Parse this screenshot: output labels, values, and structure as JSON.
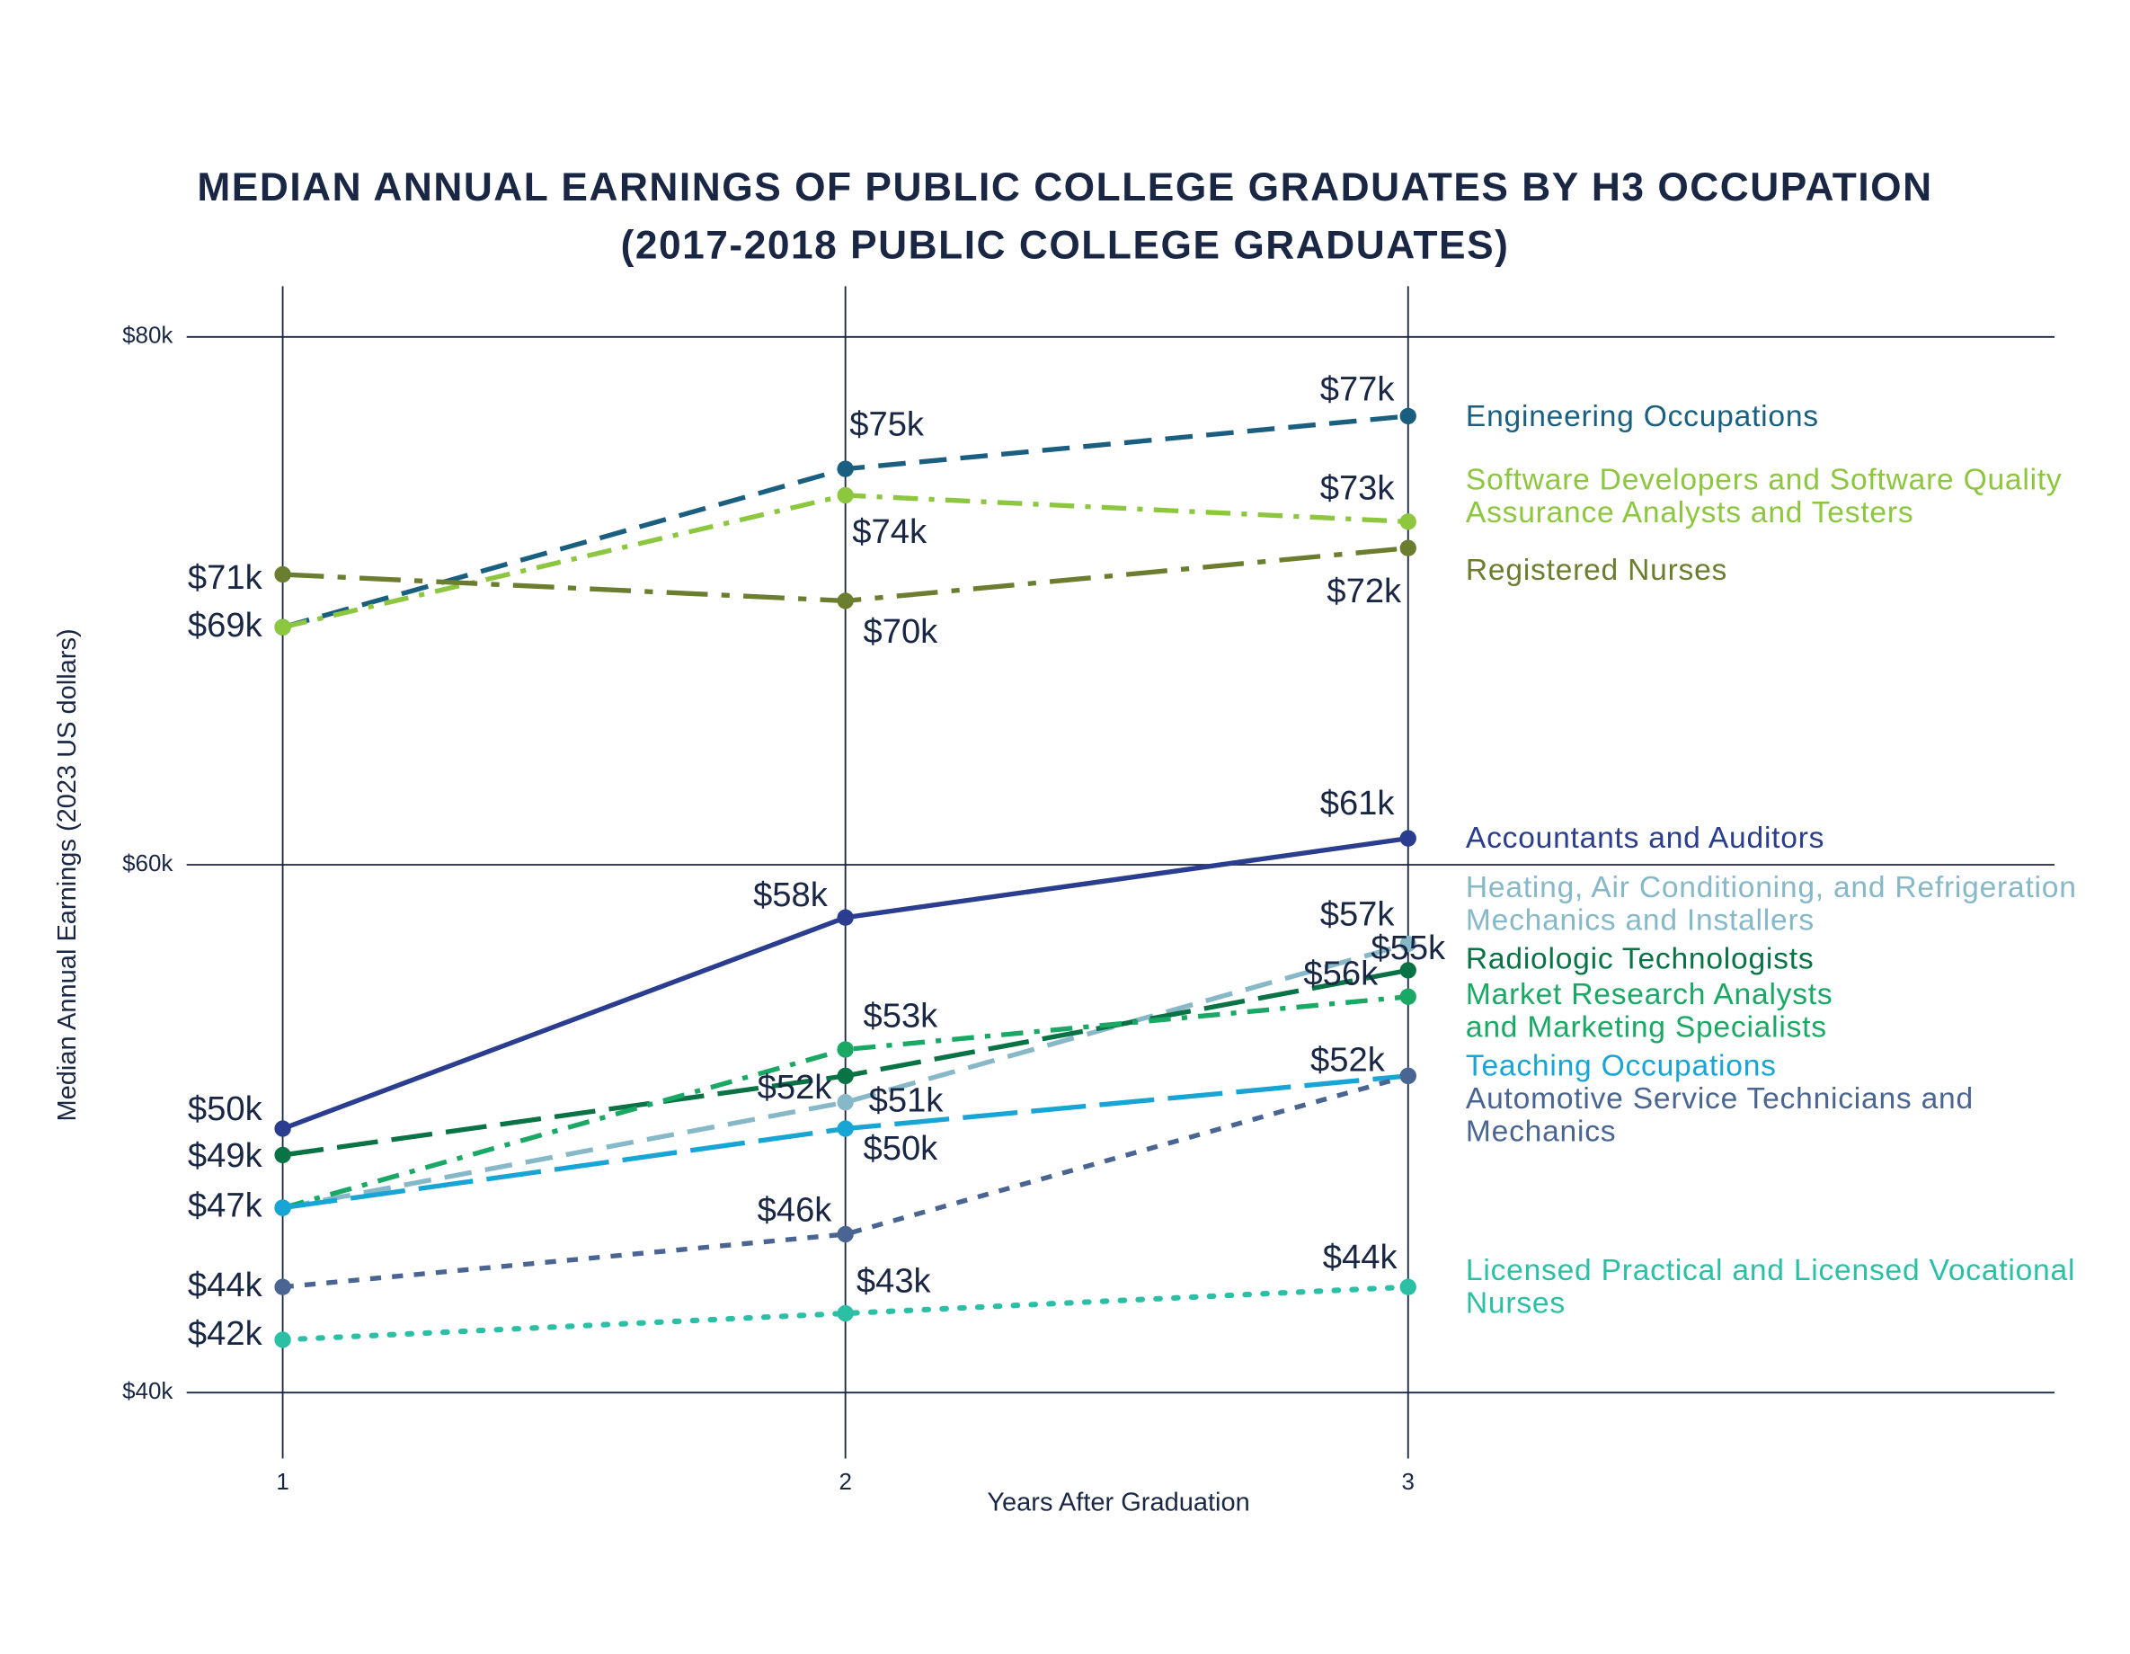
{
  "chart_data": {
    "type": "line",
    "title": "MEDIAN ANNUAL EARNINGS OF PUBLIC COLLEGE GRADUATES BY H3 OCCUPATION",
    "subtitle": "(2017-2018 PUBLIC COLLEGE GRADUATES)",
    "x_label": "Years After Graduation",
    "y_label": "Median Annual Earnings (2023 US dollars)",
    "x": [
      1,
      2,
      3
    ],
    "xlim": [
      1,
      3
    ],
    "xticks": [
      1,
      2,
      3
    ],
    "ylim": [
      40,
      80
    ],
    "yticks": [
      {
        "value": 40,
        "label": "$40k"
      },
      {
        "value": 60,
        "label": "$60k"
      },
      {
        "value": 80,
        "label": "$80k"
      }
    ],
    "grid": true,
    "series": [
      {
        "name": "Engineering Occupations",
        "color": "#1a5f80",
        "values": [
          69,
          75,
          77
        ],
        "value_labels": [
          null,
          "$75k",
          "$77k"
        ]
      },
      {
        "name": "Software Developers and Software Quality Assurance Analysts and Testers",
        "color": "#8dc63f",
        "values": [
          69,
          74,
          73
        ],
        "value_labels": [
          "$69k",
          "$74k",
          "$73k"
        ]
      },
      {
        "name": "Registered Nurses",
        "color": "#6b7d2e",
        "values": [
          71,
          70,
          72
        ],
        "value_labels": [
          "$71k",
          "$70k",
          "$72k"
        ]
      },
      {
        "name": "Accountants and Auditors",
        "color": "#2a3d8f",
        "values": [
          50,
          58,
          61
        ],
        "value_labels": [
          "$50k",
          "$58k",
          "$61k"
        ]
      },
      {
        "name": "Heating, Air Conditioning, and Refrigeration Mechanics and Installers",
        "color": "#86b8c8",
        "values": [
          47,
          51,
          57
        ],
        "value_labels": [
          null,
          "$51k",
          "$57k"
        ]
      },
      {
        "name": "Radiologic Technologists",
        "color": "#0a7345",
        "values": [
          49,
          52,
          56
        ],
        "value_labels": [
          "$49k",
          "$52k",
          "$56k"
        ]
      },
      {
        "name": "Market Research Analysts and Marketing Specialists",
        "color": "#1aa865",
        "values": [
          47,
          53,
          55
        ],
        "value_labels": [
          null,
          "$53k",
          "$55k"
        ]
      },
      {
        "name": "Teaching Occupations",
        "color": "#17a5d6",
        "values": [
          47,
          50,
          52
        ],
        "value_labels": [
          "$47k",
          "$50k",
          "$52k"
        ]
      },
      {
        "name": "Automotive Service Technicians and Mechanics",
        "color": "#4a6592",
        "values": [
          44,
          46,
          52
        ],
        "value_labels": [
          "$44k",
          "$46k",
          null
        ]
      },
      {
        "name": "Licensed Practical and Licensed Vocational Nurses",
        "color": "#2bbfa5",
        "values": [
          42,
          43,
          44
        ],
        "value_labels": [
          "$42k",
          "$43k",
          "$44k"
        ]
      }
    ]
  }
}
